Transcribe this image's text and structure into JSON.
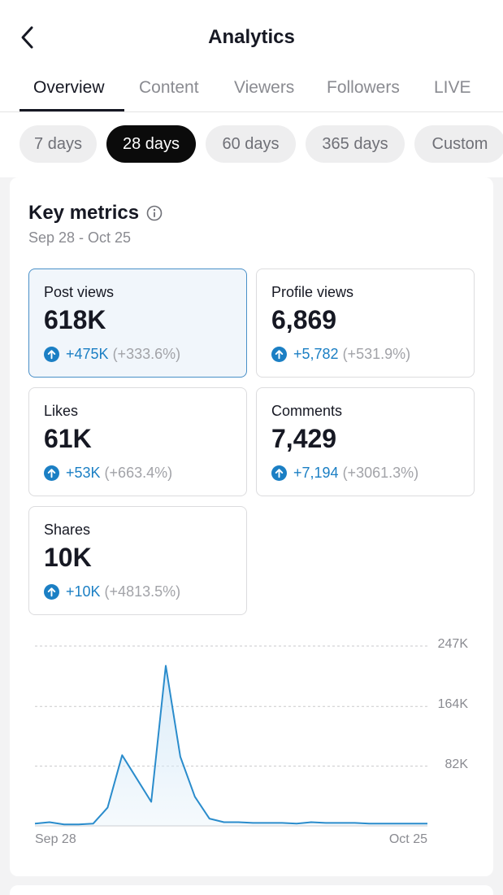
{
  "header": {
    "title": "Analytics",
    "back_icon": "chevron-left-icon"
  },
  "tabs": [
    {
      "label": "Overview",
      "active": true
    },
    {
      "label": "Content",
      "active": false
    },
    {
      "label": "Viewers",
      "active": false
    },
    {
      "label": "Followers",
      "active": false
    },
    {
      "label": "LIVE",
      "active": false
    }
  ],
  "ranges": [
    {
      "label": "7 days",
      "active": false
    },
    {
      "label": "28 days",
      "active": true
    },
    {
      "label": "60 days",
      "active": false
    },
    {
      "label": "365 days",
      "active": false
    },
    {
      "label": "Custom",
      "active": false
    }
  ],
  "key_metrics": {
    "title": "Key metrics",
    "info_icon": "info-icon",
    "date_range": "Sep 28 - Oct 25",
    "metrics": [
      {
        "label": "Post views",
        "value": "618K",
        "delta": "+475K",
        "pct": "(+333.6%)",
        "selected": true
      },
      {
        "label": "Profile views",
        "value": "6,869",
        "delta": "+5,782",
        "pct": "(+531.9%)",
        "selected": false
      },
      {
        "label": "Likes",
        "value": "61K",
        "delta": "+53K",
        "pct": "(+663.4%)",
        "selected": false
      },
      {
        "label": "Comments",
        "value": "7,429",
        "delta": "+7,194",
        "pct": "(+3061.3%)",
        "selected": false
      },
      {
        "label": "Shares",
        "value": "10K",
        "delta": "+10K",
        "pct": "(+4813.5%)",
        "selected": false
      }
    ]
  },
  "colors": {
    "accent": "#1b7fc4",
    "line": "#2a8ccc",
    "fill": "#d9ebf8",
    "selected_border": "#4a90c8",
    "active_pill": "#0b0b0b"
  },
  "chart_data": {
    "type": "area",
    "x_start_label": "Sep 28",
    "x_end_label": "Oct 25",
    "y_tick_labels": [
      "247K",
      "164K",
      "82K"
    ],
    "y_ticks": [
      247000,
      164000,
      82000
    ],
    "ylim": [
      0,
      247000
    ],
    "grid": true,
    "values": [
      3000,
      5000,
      2000,
      2000,
      3000,
      25000,
      97000,
      65000,
      33000,
      220000,
      95000,
      40000,
      10000,
      5000,
      5000,
      4000,
      4000,
      4000,
      3000,
      5000,
      4000,
      4000,
      4000,
      3000,
      3000,
      3000,
      3000,
      3000
    ]
  }
}
